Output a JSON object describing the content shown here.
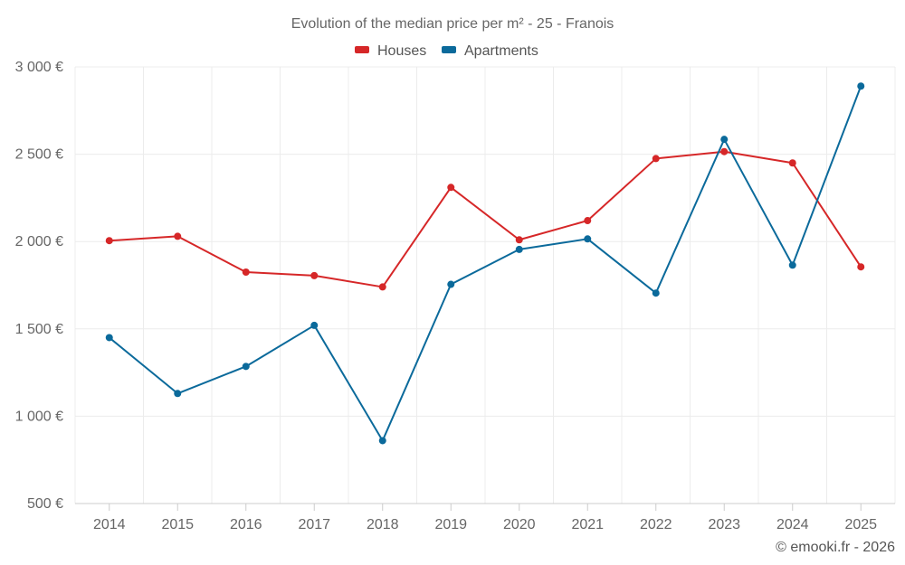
{
  "chart_data": {
    "type": "line",
    "title": "Evolution of the median price per m² - 25 - Franois",
    "categories": [
      "2014",
      "2015",
      "2016",
      "2017",
      "2018",
      "2019",
      "2020",
      "2021",
      "2022",
      "2023",
      "2024",
      "2025"
    ],
    "series": [
      {
        "name": "Houses",
        "color": "#d62728",
        "values": [
          2005,
          2030,
          1825,
          1805,
          1740,
          2310,
          2010,
          2120,
          2475,
          2515,
          2450,
          1855
        ]
      },
      {
        "name": "Apartments",
        "color": "#0b6a9b",
        "values": [
          1450,
          1130,
          1285,
          1520,
          860,
          1755,
          1955,
          2015,
          1705,
          2585,
          1865,
          2890
        ]
      }
    ],
    "ylim": [
      500,
      3000
    ],
    "yticks": [
      500,
      1000,
      1500,
      2000,
      2500,
      3000
    ],
    "ytick_labels": [
      "500 €",
      "1 000 €",
      "1 500 €",
      "2 000 €",
      "2 500 €",
      "3 000 €"
    ],
    "xlabel": "",
    "ylabel": "",
    "legend_position": "top-center",
    "grid": true
  },
  "credit": "© emooki.fr - 2026"
}
